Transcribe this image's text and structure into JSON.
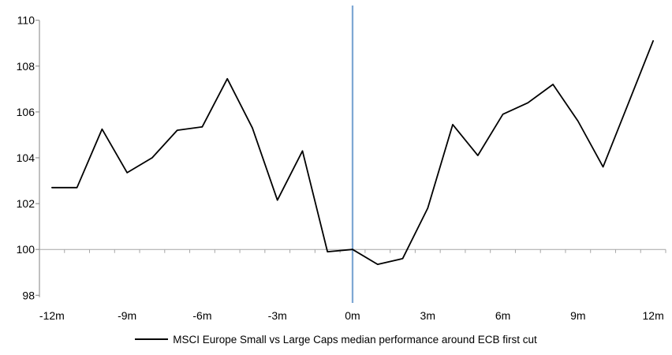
{
  "chart_data": {
    "type": "line",
    "title": "",
    "xlabel": "",
    "ylabel": "",
    "x": [
      -12,
      -11,
      -10,
      -9,
      -8,
      -7,
      -6,
      -5,
      -4,
      -3,
      -2,
      -1,
      0,
      1,
      2,
      3,
      4,
      5,
      6,
      7,
      8,
      9,
      10,
      11,
      12
    ],
    "series": [
      {
        "name": "MSCI Europe Small vs Large Caps median performance around ECB first cut",
        "color": "#000000",
        "values": [
          102.7,
          102.7,
          105.25,
          103.35,
          104.0,
          105.2,
          105.35,
          107.45,
          105.3,
          102.15,
          104.3,
          99.9,
          100.0,
          99.35,
          99.6,
          101.8,
          105.45,
          104.1,
          105.9,
          106.4,
          107.2,
          105.6,
          103.6,
          106.35,
          109.1
        ]
      }
    ],
    "x_tick_positions": [
      -12,
      -9,
      -6,
      -3,
      0,
      3,
      6,
      9,
      12
    ],
    "x_tick_labels": [
      "-12m",
      "-9m",
      "-6m",
      "-3m",
      "0m",
      "3m",
      "6m",
      "9m",
      "12m"
    ],
    "y_ticks": [
      98,
      100,
      102,
      104,
      106,
      108,
      110
    ],
    "ylim": [
      98,
      110
    ],
    "baseline_value": 100,
    "event_line_x": 0,
    "grid": false,
    "colors": {
      "series_line": "#000000",
      "event_line": "#7FA8D4",
      "y_axis": "#808080",
      "baseline_line": "#A6A6A6",
      "tick_text": "#000000"
    },
    "legend": {
      "label": "MSCI Europe Small vs Large Caps median performance around ECB first cut",
      "position": "bottom"
    }
  }
}
